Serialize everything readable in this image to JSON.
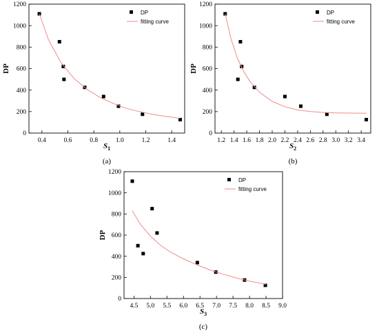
{
  "chart_data": [
    {
      "type": "scatter",
      "panel_label": "(a)",
      "xlabel": "S",
      "xlabel_sub": "1",
      "ylabel": "DP",
      "xlim": [
        0.3,
        1.5
      ],
      "ylim": [
        0,
        1200
      ],
      "xticks": [
        "0.4",
        "0.6",
        "0.8",
        "1.0",
        "1.2",
        "1.4"
      ],
      "xtick_values": [
        0.4,
        0.6,
        0.8,
        1.0,
        1.2,
        1.4
      ],
      "yticks": [
        "0",
        "200",
        "400",
        "600",
        "800",
        "1000",
        "1200"
      ],
      "ytick_values": [
        0,
        200,
        400,
        600,
        800,
        1000,
        1200
      ],
      "legend_position": "top-right",
      "series": [
        {
          "name": "DP",
          "kind": "scatter",
          "color": "#000000",
          "x": [
            0.38,
            0.535,
            0.565,
            0.57,
            0.73,
            0.875,
            0.99,
            1.175,
            1.465
          ],
          "y": [
            1110,
            850,
            620,
            500,
            425,
            340,
            250,
            175,
            125
          ]
        },
        {
          "name": "fitting curve",
          "kind": "line",
          "color": "#f08a8a",
          "x": [
            0.38,
            0.45,
            0.55,
            0.65,
            0.75,
            0.85,
            0.95,
            1.05,
            1.15,
            1.25,
            1.35,
            1.46
          ],
          "y": [
            1110,
            870,
            650,
            505,
            405,
            330,
            275,
            230,
            200,
            175,
            155,
            138
          ]
        }
      ]
    },
    {
      "type": "scatter",
      "panel_label": "(b)",
      "xlabel": "S",
      "xlabel_sub": "2",
      "ylabel": "DP",
      "xlim": [
        1.1,
        3.55
      ],
      "ylim": [
        0,
        1200
      ],
      "xticks": [
        "1.2",
        "1.4",
        "1.6",
        "1.8",
        "2.0",
        "2.2",
        "2.4",
        "2.6",
        "2.8",
        "3.0",
        "3.2",
        "3.4"
      ],
      "xtick_values": [
        1.2,
        1.4,
        1.6,
        1.8,
        2.0,
        2.2,
        2.4,
        2.6,
        2.8,
        3.0,
        3.2,
        3.4
      ],
      "yticks": [
        "0",
        "200",
        "400",
        "600",
        "800",
        "1000",
        "1200"
      ],
      "ytick_values": [
        0,
        200,
        400,
        600,
        800,
        1000,
        1200
      ],
      "legend_position": "top-right",
      "series": [
        {
          "name": "DP",
          "kind": "scatter",
          "color": "#000000",
          "x": [
            1.26,
            1.46,
            1.5,
            1.52,
            1.72,
            2.2,
            2.45,
            2.86,
            3.48
          ],
          "y": [
            1110,
            500,
            850,
            620,
            425,
            340,
            250,
            175,
            125
          ]
        },
        {
          "name": "fitting curve",
          "kind": "line",
          "color": "#f08a8a",
          "x": [
            1.26,
            1.35,
            1.45,
            1.55,
            1.65,
            1.8,
            2.0,
            2.2,
            2.4,
            2.6,
            2.8,
            3.0,
            3.2,
            3.48
          ],
          "y": [
            1110,
            880,
            700,
            575,
            480,
            380,
            295,
            245,
            215,
            200,
            192,
            188,
            186,
            185
          ]
        }
      ]
    },
    {
      "type": "scatter",
      "panel_label": "(c)",
      "xlabel": "S",
      "xlabel_sub": "3",
      "ylabel": "DP",
      "xlim": [
        4.2,
        9.0
      ],
      "ylim": [
        0,
        1200
      ],
      "xticks": [
        "4.5",
        "5.0",
        "5.5",
        "6.0",
        "6.5",
        "7.0",
        "7.5",
        "8.0",
        "8.5",
        "9.0"
      ],
      "xtick_values": [
        4.5,
        5.0,
        5.5,
        6.0,
        6.5,
        7.0,
        7.5,
        8.0,
        8.5,
        9.0
      ],
      "yticks": [
        "0",
        "200",
        "400",
        "600",
        "800",
        "1000",
        "1200"
      ],
      "ytick_values": [
        0,
        200,
        400,
        600,
        800,
        1000,
        1200
      ],
      "legend_position": "top-right",
      "series": [
        {
          "name": "DP",
          "kind": "scatter",
          "color": "#000000",
          "x": [
            4.45,
            4.62,
            4.78,
            5.05,
            5.2,
            6.42,
            6.98,
            7.85,
            8.48
          ],
          "y": [
            1110,
            500,
            425,
            850,
            620,
            340,
            250,
            175,
            125
          ]
        },
        {
          "name": "fitting curve",
          "kind": "line",
          "color": "#f08a8a",
          "x": [
            4.45,
            4.7,
            5.0,
            5.3,
            5.6,
            6.0,
            6.4,
            6.8,
            7.2,
            7.6,
            8.0,
            8.4,
            8.5
          ],
          "y": [
            830,
            700,
            590,
            505,
            440,
            375,
            320,
            270,
            230,
            195,
            165,
            140,
            135
          ]
        }
      ]
    }
  ],
  "legend": {
    "marker_label": "DP",
    "line_label": "fitting curve"
  }
}
